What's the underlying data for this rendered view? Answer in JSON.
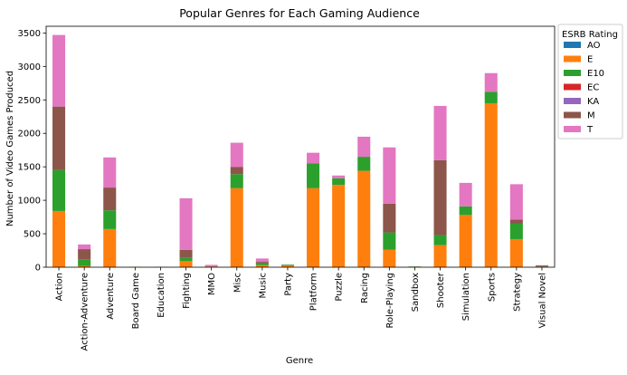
{
  "chart_data": {
    "type": "bar",
    "stacked": true,
    "title": "Popular Genres for Each Gaming Audience",
    "xlabel": "Genre",
    "ylabel": "Number of Video Games Produced",
    "ylim": [
      0,
      3600
    ],
    "yticks": [
      0,
      500,
      1000,
      1500,
      2000,
      2500,
      3000,
      3500
    ],
    "grid": false,
    "legend": {
      "title": "ESRB Rating",
      "placement": "outside-top-right"
    },
    "categories": [
      "Action",
      "Action-Adventure",
      "Adventure",
      "Board Game",
      "Education",
      "Fighting",
      "MMO",
      "Misc",
      "Music",
      "Party",
      "Platform",
      "Puzzle",
      "Racing",
      "Role-Playing",
      "Sandbox",
      "Shooter",
      "Simulation",
      "Sports",
      "Strategy",
      "Visual Novel"
    ],
    "series": [
      {
        "name": "AO",
        "color": "#1f77b4",
        "values": [
          0,
          0,
          0,
          0,
          0,
          0,
          0,
          0,
          0,
          0,
          0,
          0,
          0,
          0,
          0,
          0,
          0,
          0,
          0,
          0
        ]
      },
      {
        "name": "E",
        "color": "#ff7f0e",
        "values": [
          840,
          20,
          570,
          5,
          5,
          90,
          10,
          1180,
          30,
          30,
          1180,
          1230,
          1440,
          260,
          5,
          330,
          780,
          2450,
          420,
          5
        ]
      },
      {
        "name": "E10",
        "color": "#2ca02c",
        "values": [
          610,
          100,
          280,
          0,
          0,
          50,
          0,
          210,
          30,
          10,
          370,
          100,
          210,
          260,
          5,
          150,
          130,
          170,
          230,
          5
        ]
      },
      {
        "name": "EC",
        "color": "#d62728",
        "values": [
          0,
          0,
          0,
          0,
          0,
          0,
          0,
          0,
          0,
          0,
          0,
          0,
          0,
          0,
          0,
          0,
          0,
          0,
          0,
          0
        ]
      },
      {
        "name": "KA",
        "color": "#9467bd",
        "values": [
          0,
          0,
          0,
          0,
          0,
          0,
          0,
          0,
          0,
          0,
          0,
          0,
          0,
          0,
          0,
          0,
          0,
          0,
          0,
          0
        ]
      },
      {
        "name": "M",
        "color": "#8c564b",
        "values": [
          950,
          150,
          340,
          0,
          0,
          120,
          5,
          110,
          20,
          0,
          0,
          0,
          0,
          430,
          0,
          1120,
          0,
          0,
          60,
          15
        ]
      },
      {
        "name": "T",
        "color": "#e377c2",
        "values": [
          1070,
          70,
          450,
          0,
          0,
          770,
          20,
          360,
          50,
          0,
          160,
          40,
          300,
          840,
          0,
          810,
          350,
          280,
          530,
          5
        ]
      }
    ]
  }
}
